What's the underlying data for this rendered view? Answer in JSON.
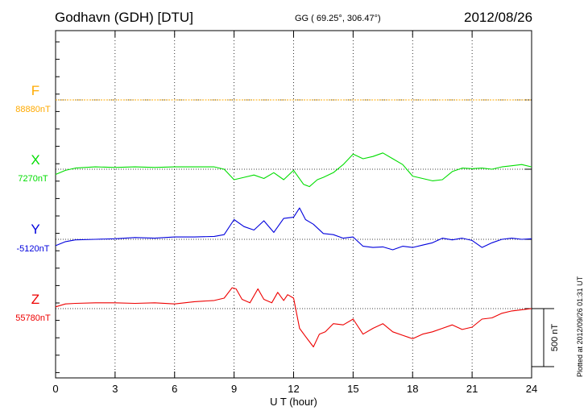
{
  "header": {
    "station": "Godhavn (GDH)  [DTU]",
    "coords": "GG ( 69.25°, 306.47°)",
    "date": "2012/08/26"
  },
  "plotted_note": "Plotted at 2012/09/26 01:31 UT",
  "chart_data": {
    "type": "line",
    "xlabel": "U T (hour)",
    "xlim": [
      0,
      24
    ],
    "xticks": [
      0,
      3,
      6,
      9,
      12,
      15,
      18,
      21,
      24
    ],
    "grid": true,
    "scale_bar": {
      "value_nT": 500,
      "label": "500 nT"
    },
    "series": [
      {
        "name": "F",
        "baseline_label": "88880nT",
        "baseline_nT": 88880,
        "color": "#ffaa00",
        "x": [
          0,
          24
        ],
        "y": [
          88880,
          88880
        ]
      },
      {
        "name": "X",
        "baseline_label": "7270nT",
        "baseline_nT": 7270,
        "color": "#00dd00",
        "x": [
          0,
          0.5,
          1,
          2,
          3,
          4,
          5,
          6,
          7,
          8,
          8.5,
          9,
          9.5,
          10,
          10.5,
          11,
          11.5,
          12,
          12.5,
          12.8,
          13.2,
          13.5,
          14,
          14.5,
          15,
          15.5,
          16,
          16.5,
          17,
          17.5,
          18,
          18.5,
          19,
          19.5,
          20,
          20.5,
          21,
          21.5,
          22,
          22.5,
          23,
          23.5,
          24
        ],
        "y": [
          7225,
          7260,
          7280,
          7290,
          7285,
          7290,
          7285,
          7290,
          7290,
          7290,
          7270,
          7180,
          7200,
          7220,
          7190,
          7240,
          7180,
          7260,
          7140,
          7120,
          7180,
          7200,
          7240,
          7310,
          7400,
          7360,
          7380,
          7410,
          7360,
          7310,
          7210,
          7190,
          7170,
          7180,
          7250,
          7280,
          7275,
          7280,
          7270,
          7290,
          7300,
          7310,
          7290
        ]
      },
      {
        "name": "Y",
        "baseline_label": "-5120nT",
        "baseline_nT": -5120,
        "color": "#0000dd",
        "x": [
          0,
          0.5,
          1,
          2,
          3,
          4,
          5,
          6,
          7,
          8,
          8.5,
          9,
          9.5,
          10,
          10.5,
          11,
          11.5,
          12,
          12.3,
          12.6,
          13,
          13.5,
          14,
          14.5,
          15,
          15.5,
          16,
          16.5,
          17,
          17.5,
          18,
          18.5,
          19,
          19.5,
          20,
          20.5,
          21,
          21.5,
          22,
          22.5,
          23,
          23.5,
          24
        ],
        "y": [
          -5175,
          -5140,
          -5125,
          -5120,
          -5115,
          -5105,
          -5110,
          -5100,
          -5100,
          -5095,
          -5080,
          -4950,
          -5010,
          -5040,
          -4960,
          -5060,
          -4940,
          -4930,
          -4850,
          -4950,
          -4990,
          -5070,
          -5080,
          -5110,
          -5100,
          -5180,
          -5190,
          -5185,
          -5210,
          -5180,
          -5190,
          -5170,
          -5150,
          -5110,
          -5125,
          -5110,
          -5130,
          -5190,
          -5150,
          -5120,
          -5110,
          -5120,
          -5115
        ]
      },
      {
        "name": "Z",
        "baseline_label": "55780nT",
        "baseline_nT": 55780,
        "color": "#ee0000",
        "x": [
          0,
          0.5,
          1,
          2,
          3,
          4,
          5,
          6,
          7,
          8,
          8.5,
          8.9,
          9.1,
          9.4,
          9.8,
          10.2,
          10.5,
          10.9,
          11.2,
          11.5,
          11.7,
          12,
          12.3,
          12.6,
          13,
          13.3,
          13.6,
          14,
          14.5,
          15,
          15.5,
          16,
          16.5,
          17,
          17.5,
          18,
          18.5,
          19,
          19.5,
          20,
          20.5,
          21,
          21.5,
          22,
          22.5,
          23,
          23.5,
          24
        ],
        "y": [
          55795,
          55820,
          55825,
          55830,
          55830,
          55825,
          55830,
          55820,
          55840,
          55850,
          55870,
          55960,
          55950,
          55860,
          55830,
          55950,
          55860,
          55830,
          55920,
          55850,
          55900,
          55870,
          55610,
          55540,
          55450,
          55560,
          55580,
          55650,
          55640,
          55690,
          55560,
          55610,
          55650,
          55580,
          55550,
          55520,
          55560,
          55580,
          55610,
          55640,
          55600,
          55620,
          55690,
          55700,
          55740,
          55760,
          55770,
          55780
        ]
      }
    ]
  }
}
